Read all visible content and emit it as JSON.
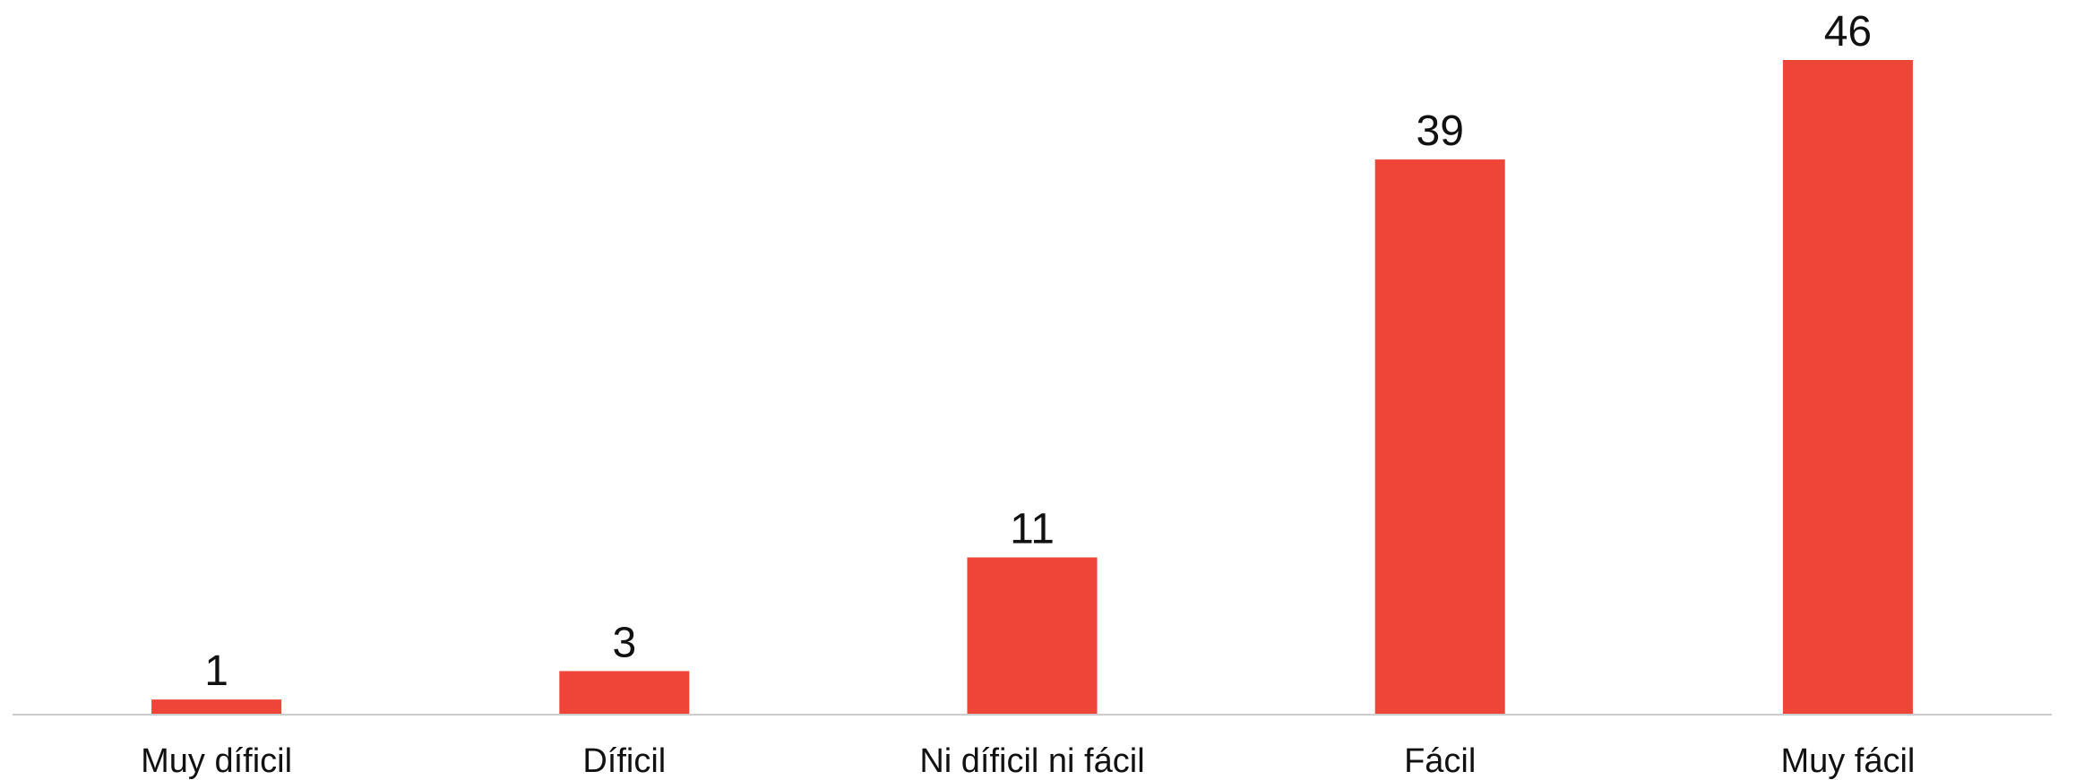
{
  "chart_data": {
    "type": "bar",
    "title": "",
    "xlabel": "",
    "ylabel": "",
    "categories": [
      "Muy díficil",
      "Díficil",
      "Ni díficil ni fácil",
      "Fácil",
      "Muy fácil"
    ],
    "values": [
      1,
      3,
      11,
      39,
      46
    ],
    "data_labels": [
      "1",
      "3",
      "11",
      "39",
      "46"
    ],
    "ylim": [
      0,
      46
    ],
    "grid": false,
    "legend": "none",
    "colors": {
      "bar": "#ef4438",
      "axis": "#cccccc",
      "text": "#111111"
    }
  }
}
